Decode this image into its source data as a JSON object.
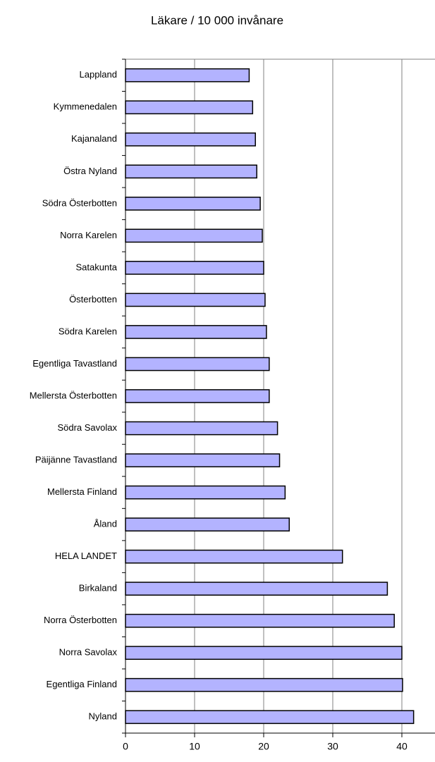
{
  "chart_data": {
    "type": "hbar",
    "title": "Läkare / 10 000 invånare",
    "categories": [
      "Lappland",
      "Kymmenedalen",
      "Kajanaland",
      "Östra Nyland",
      "Södra Österbotten",
      "Norra Karelen",
      "Satakunta",
      "Österbotten",
      "Södra Karelen",
      "Egentliga Tavastland",
      "Mellersta Österbotten",
      "Södra Savolax",
      "Päijänne Tavastland",
      "Mellersta Finland",
      "Åland",
      "HELA LANDET",
      "Birkaland",
      "Norra Österbotten",
      "Norra Savolax",
      "Egentliga Finland",
      "Nyland"
    ],
    "values": [
      17.9,
      18.4,
      18.8,
      19.0,
      19.5,
      19.8,
      20.0,
      20.2,
      20.4,
      20.8,
      20.8,
      22.0,
      22.3,
      23.1,
      23.7,
      31.4,
      37.9,
      38.9,
      40.0,
      40.1,
      41.7
    ],
    "color": "#b3b3ff",
    "xlim": [
      0,
      45
    ],
    "xticks": [
      0,
      10,
      20,
      30,
      40
    ],
    "grid": true
  }
}
